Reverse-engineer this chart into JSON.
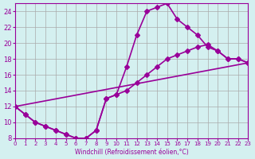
{
  "xlabel": "Windchill (Refroidissement éolien,°C)",
  "line1_x": [
    0,
    1,
    2,
    3,
    4,
    5,
    6,
    7,
    8,
    9,
    10,
    11,
    12,
    13,
    14,
    15,
    16,
    17,
    18,
    19,
    20,
    21,
    22,
    23
  ],
  "line1_y": [
    12,
    11,
    10,
    9.5,
    9,
    8.5,
    8,
    8,
    9,
    13,
    13.5,
    17,
    21,
    24,
    24.5,
    25,
    23,
    22,
    21,
    19.5,
    19,
    18,
    18,
    17.5
  ],
  "line2_x": [
    0,
    1,
    2,
    3,
    4,
    5,
    6,
    7,
    8,
    9,
    10,
    11,
    12,
    13,
    14,
    15,
    16,
    17,
    18,
    19,
    20,
    21,
    22,
    23
  ],
  "line2_y": [
    12,
    11,
    10,
    9.5,
    9,
    8.5,
    8,
    8,
    9,
    13,
    13.5,
    14,
    15,
    16,
    17,
    18,
    18.5,
    19,
    19.5,
    19.8,
    19,
    18,
    18,
    17.5
  ],
  "line3_x": [
    0,
    23
  ],
  "line3_y": [
    12,
    17.5
  ],
  "color": "#990099",
  "bg_color": "#d4f0f0",
  "grid_color": "#aaaaaa",
  "xlim": [
    0,
    23
  ],
  "ylim": [
    8,
    25
  ],
  "yticks": [
    8,
    10,
    12,
    14,
    16,
    18,
    20,
    22,
    24
  ],
  "xticks": [
    0,
    1,
    2,
    3,
    4,
    5,
    6,
    7,
    8,
    9,
    10,
    11,
    12,
    13,
    14,
    15,
    16,
    17,
    18,
    19,
    20,
    21,
    22,
    23
  ],
  "marker": "D",
  "markersize": 3,
  "linewidth": 1.2
}
